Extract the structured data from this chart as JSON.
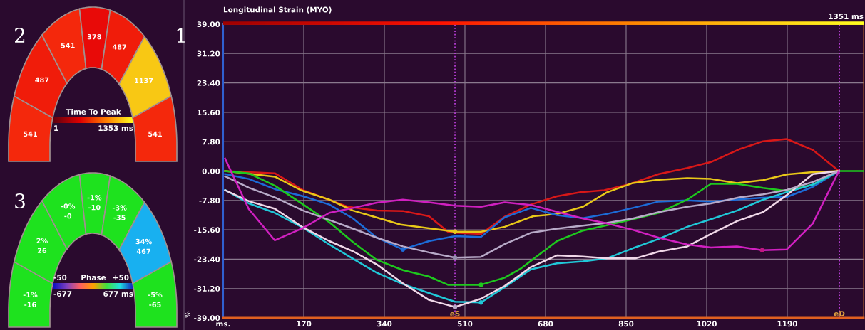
{
  "chart_data": [
    {
      "type": "other",
      "clabel": "Time To Peak",
      "annotations": [
        "2",
        "541",
        "487",
        "541",
        "378",
        "487",
        "1137",
        "541",
        "1",
        "1353 ms"
      ],
      "colors": [
        "#f4280c",
        "#f01c0a",
        "#f4280c",
        "#e80a08",
        "#f01c0a",
        "#f8c814",
        "#f4280c"
      ]
    },
    {
      "type": "other",
      "clabel": "Phase",
      "annotations": [
        "3",
        "-1%\n-16",
        "2%\n26",
        "-0%\n-0",
        "-1%\n-10",
        "-3%\n-35",
        "34%\n467",
        "-5%\n-65",
        "-677",
        "677 ms",
        "-50",
        "+50"
      ],
      "colors": [
        "#1ee21e",
        "#1ee21e",
        "#1ee21e",
        "#1ee21e",
        "#1ee21e",
        "#18b0f0",
        "#1ee21e"
      ]
    },
    {
      "type": "line",
      "title": "Longitudinal Strain (MYO)",
      "ylabel": "%",
      "annotations": [
        "1",
        "1351 ms"
      ],
      "xlim": [
        0,
        1351
      ],
      "ylim": [
        -39,
        39
      ],
      "xticks": [
        {
          "value": 0,
          "label": "ms."
        },
        170,
        340,
        510,
        680,
        850,
        1020,
        1190
      ],
      "yticks": [
        {
          "value": 39,
          "label": "39.00"
        },
        {
          "value": 31.2,
          "label": "31.20"
        },
        {
          "value": 23.4,
          "label": "23.40"
        },
        {
          "value": 15.6,
          "label": "15.60"
        },
        {
          "value": 7.8,
          "label": "7.80"
        },
        {
          "value": 0,
          "label": "0.00"
        },
        {
          "value": -7.8,
          "label": "-7.80"
        },
        {
          "value": -15.6,
          "label": "-15.60"
        },
        {
          "value": -23.4,
          "label": "-23.40"
        },
        {
          "value": -31.2,
          "label": "-31.20"
        },
        {
          "value": -39,
          "label": "-39.00"
        }
      ],
      "grid": true,
      "line_style": "solid",
      "ref_lines": [
        {
          "axis": "x",
          "value": 489,
          "label": "eS",
          "color": "#c040e0",
          "line_style": "dotted"
        },
        {
          "axis": "x",
          "value": 1300,
          "label": "eD",
          "color": "#c040e0",
          "line_style": "dotted"
        }
      ],
      "series": [
        {
          "color": "#d81818",
          "x": [
            4,
            109,
            169,
            264,
            324,
            379,
            434,
            474,
            489,
            544,
            594,
            649,
            704,
            754,
            804,
            854,
            919,
            979,
            1029,
            1089,
            1139,
            1189,
            1244,
            1299
          ],
          "values": [
            0,
            -0.6,
            -5.1,
            -9.5,
            -10.5,
            -10.6,
            -12.0,
            -16.1,
            -16.4,
            -16.7,
            -12.1,
            -8.9,
            -6.7,
            -5.6,
            -5.1,
            -3.6,
            -0.8,
            0.8,
            2.4,
            5.8,
            7.9,
            8.5,
            5.6,
            0
          ]
        },
        {
          "color": "#e8c818",
          "x": [
            4,
            109,
            164,
            224,
            274,
            374,
            489,
            544,
            594,
            654,
            704,
            759,
            809,
            864,
            919,
            979,
            1029,
            1084,
            1139,
            1189,
            1244,
            1299
          ],
          "values": [
            0,
            -1.5,
            -5.1,
            -7.6,
            -10.5,
            -14.2,
            -16.1,
            -16.1,
            -14.8,
            -12.0,
            -11.4,
            -9.5,
            -5.7,
            -3.2,
            -2.3,
            -1.9,
            -2.1,
            -3.2,
            -2.4,
            -0.9,
            -0.3,
            0
          ]
        },
        {
          "color": "#1c6cd8",
          "x": [
            4,
            54,
            109,
            169,
            224,
            274,
            324,
            379,
            434,
            489,
            544,
            594,
            649,
            704,
            759,
            809,
            864,
            919,
            979,
            1029,
            1089,
            1139,
            1189,
            1244,
            1299
          ],
          "values": [
            -0.8,
            -2.1,
            -4.8,
            -6.7,
            -8.9,
            -12.6,
            -17.7,
            -20.8,
            -18.6,
            -17.3,
            -17.5,
            -12.3,
            -9.8,
            -11.7,
            -12.5,
            -11.4,
            -9.8,
            -8.1,
            -7.8,
            -8.1,
            -7.5,
            -7.1,
            -6.9,
            -4.2,
            0
          ]
        },
        {
          "color": "#1ec81e",
          "x": [
            4,
            54,
            109,
            169,
            224,
            274,
            324,
            379,
            434,
            474,
            544,
            594,
            629,
            704,
            759,
            809,
            864,
            919,
            979,
            1029,
            1084,
            1139,
            1189,
            1244,
            1299,
            1351
          ],
          "values": [
            0,
            -0.6,
            -3.9,
            -8.9,
            -13.6,
            -18.9,
            -23.6,
            -26.3,
            -28.0,
            -30.2,
            -30.2,
            -28.3,
            -25.8,
            -18.6,
            -15.8,
            -14.4,
            -12.8,
            -11.1,
            -7.6,
            -3.4,
            -3.4,
            -4.5,
            -5.3,
            -3.6,
            0,
            0
          ]
        },
        {
          "color": "#20c8d8",
          "x": [
            4,
            54,
            109,
            169,
            224,
            274,
            324,
            379,
            434,
            489,
            544,
            594,
            649,
            704,
            759,
            809,
            864,
            919,
            979,
            1029,
            1084,
            1139,
            1189,
            1244,
            1299
          ],
          "values": [
            -5.0,
            -8.6,
            -11.1,
            -15.1,
            -19.5,
            -23.3,
            -27.0,
            -30.0,
            -32.4,
            -34.7,
            -34.9,
            -30.8,
            -26.1,
            -24.5,
            -24.0,
            -23.2,
            -20.5,
            -18.0,
            -14.8,
            -12.8,
            -10.5,
            -7.6,
            -5.6,
            -3.6,
            0
          ]
        },
        {
          "color": "#f0d8e8",
          "x": [
            4,
            54,
            109,
            169,
            224,
            274,
            324,
            379,
            434,
            489,
            544,
            594,
            649,
            704,
            759,
            809,
            869,
            919,
            979,
            1029,
            1084,
            1139,
            1189,
            1244,
            1299
          ],
          "values": [
            -5.1,
            -8.0,
            -10.0,
            -15.0,
            -18.6,
            -21.3,
            -24.8,
            -29.8,
            -34.2,
            -36.1,
            -33.9,
            -30.5,
            -25.5,
            -22.4,
            -22.7,
            -23.2,
            -23.2,
            -21.4,
            -20.0,
            -16.7,
            -13.3,
            -10.9,
            -6.4,
            -0.8,
            0
          ]
        },
        {
          "color": "#b8aac8",
          "x": [
            4,
            54,
            109,
            169,
            224,
            274,
            324,
            379,
            434,
            489,
            544,
            594,
            649,
            704,
            759,
            809,
            864,
            919,
            979,
            1029,
            1089,
            1139,
            1189,
            1244,
            1299
          ],
          "values": [
            -1.4,
            -4.4,
            -7.0,
            -10.5,
            -13.0,
            -15.3,
            -17.7,
            -20.0,
            -21.6,
            -23.0,
            -22.8,
            -19.4,
            -16.4,
            -15.3,
            -14.5,
            -13.8,
            -12.6,
            -10.9,
            -9.5,
            -8.6,
            -7.0,
            -6.2,
            -5.0,
            -2.9,
            0
          ]
        },
        {
          "color": "#d020c0",
          "x": [
            4,
            54,
            109,
            169,
            224,
            274,
            324,
            379,
            434,
            489,
            544,
            594,
            649,
            704,
            759,
            809,
            864,
            919,
            979,
            1029,
            1084,
            1137,
            1189,
            1244,
            1299
          ],
          "values": [
            3.3,
            -10.1,
            -18.4,
            -15.1,
            -11.1,
            -9.8,
            -8.4,
            -7.6,
            -8.3,
            -9.2,
            -9.5,
            -8.3,
            -9.0,
            -10.8,
            -12.6,
            -13.9,
            -15.6,
            -17.7,
            -19.5,
            -20.3,
            -20.0,
            -21.0,
            -20.8,
            -13.9,
            0
          ]
        },
        {
          "type": "scatter",
          "x": [
            489,
            379,
            544,
            544,
            489,
            489,
            1137
          ],
          "values": [
            -16.1,
            -20.8,
            -30.2,
            -34.9,
            -36.1,
            -23.0,
            -21.0
          ],
          "colors": [
            "#e8c818",
            "#1c6cd8",
            "#1ec81e",
            "#20c8d8",
            "#b8aac8",
            "#9890b0",
            "#c01880"
          ]
        }
      ]
    }
  ]
}
